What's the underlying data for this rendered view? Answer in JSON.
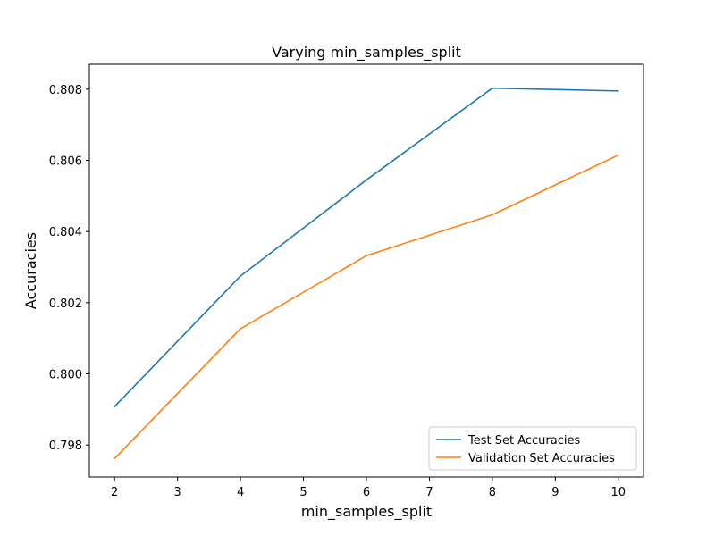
{
  "chart_data": {
    "type": "line",
    "title": "Varying min_samples_split",
    "xlabel": "min_samples_split",
    "ylabel": "Accuracies",
    "x": [
      2,
      4,
      6,
      8,
      10
    ],
    "xlim": [
      1.6,
      10.4
    ],
    "ylim": [
      0.7971,
      0.8087
    ],
    "xticks": [
      "2",
      "3",
      "4",
      "5",
      "6",
      "7",
      "8",
      "9",
      "10"
    ],
    "yticks": [
      "0.798",
      "0.800",
      "0.802",
      "0.804",
      "0.806",
      "0.808"
    ],
    "grid": false,
    "legend_position": "lower-right",
    "series": [
      {
        "name": "Test Set Accuracies",
        "color": "#1f77b4",
        "values": [
          0.79908,
          0.80275,
          0.80545,
          0.80803,
          0.80795
        ]
      },
      {
        "name": "Validation Set Accuracies",
        "color": "#ff7f0e",
        "values": [
          0.79762,
          0.80127,
          0.80332,
          0.80447,
          0.80615
        ]
      }
    ]
  }
}
